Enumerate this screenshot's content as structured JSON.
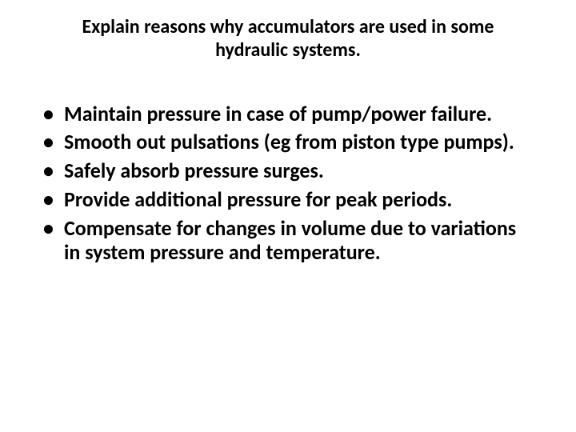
{
  "title": "Explain reasons why accumulators are used in some hydraulic systems.",
  "bullets": [
    "Maintain pressure in case of pump/power failure.",
    "Smooth out pulsations (eg from piston type pumps).",
    "Safely absorb pressure surges.",
    "Provide additional pressure for peak periods.",
    "Compensate for changes in volume due to variations in system pressure and temperature."
  ],
  "style": {
    "background_color": "#ffffff",
    "text_color": "#000000",
    "title_fontsize": 24,
    "title_fontweight": 700,
    "body_fontsize": 26,
    "body_fontweight": 700,
    "font_family": "Calibri, Arial, sans-serif",
    "bullet_glyph": "•"
  }
}
